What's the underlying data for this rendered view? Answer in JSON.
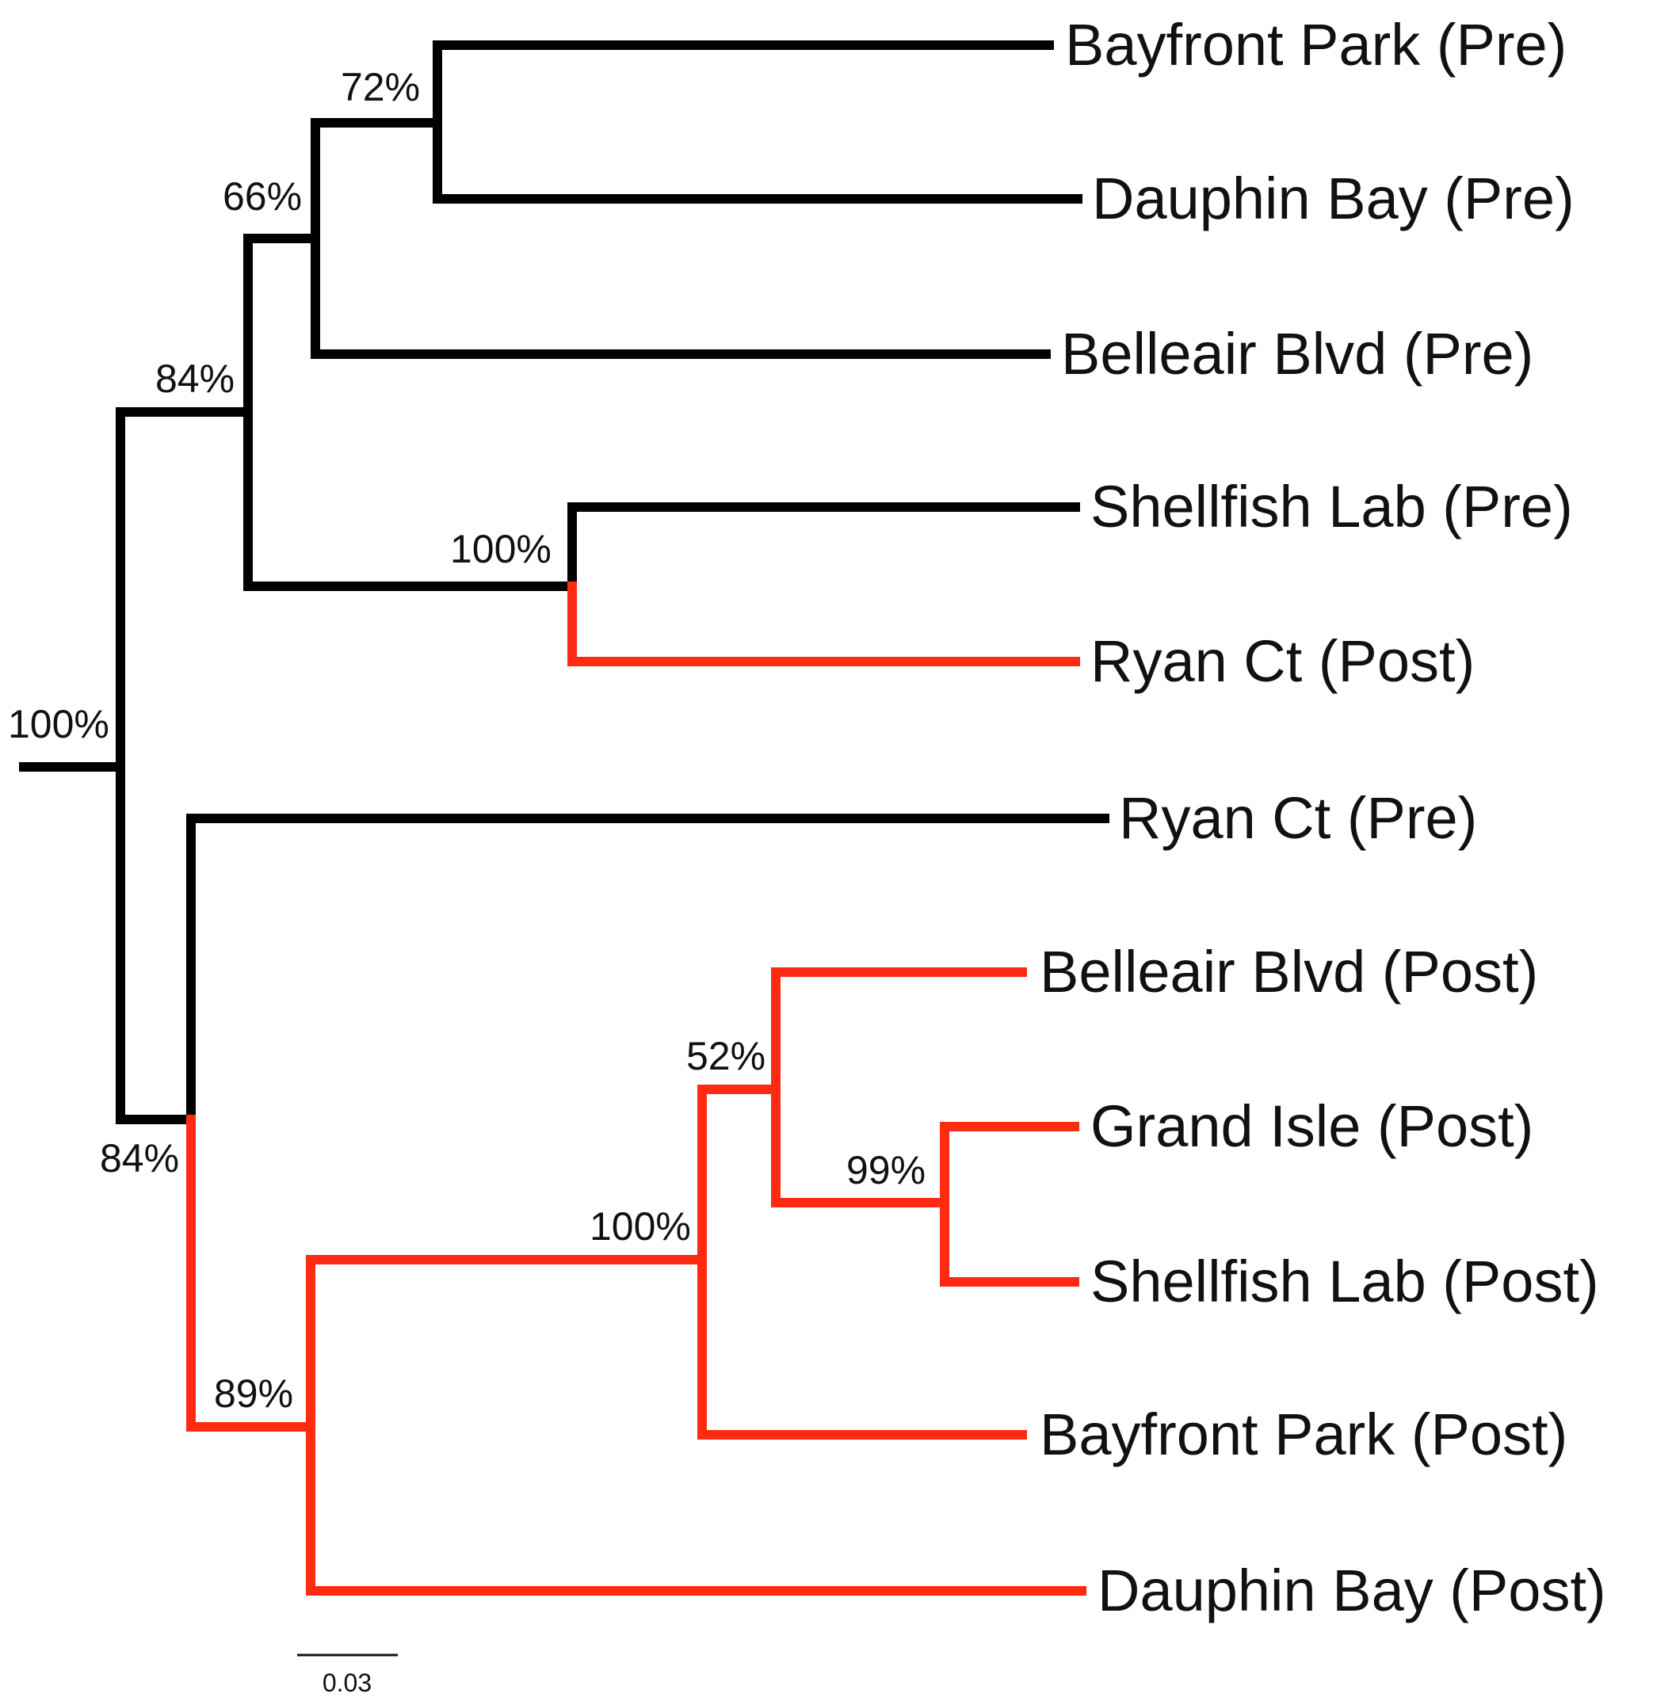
{
  "tree": {
    "colors": {
      "pre": "#000000",
      "post": "#ff2a12"
    },
    "leaves": [
      {
        "id": "l1",
        "label": "Bayfront Park (Pre)",
        "group": "pre"
      },
      {
        "id": "l2",
        "label": "Dauphin Bay (Pre)",
        "group": "pre"
      },
      {
        "id": "l3",
        "label": "Belleair Blvd (Pre)",
        "group": "pre"
      },
      {
        "id": "l4",
        "label": "Shellfish Lab (Pre)",
        "group": "pre"
      },
      {
        "id": "l5",
        "label": "Ryan Ct (Post)",
        "group": "post"
      },
      {
        "id": "l6",
        "label": "Ryan Ct (Pre)",
        "group": "pre"
      },
      {
        "id": "l7",
        "label": "Belleair Blvd (Post)",
        "group": "post"
      },
      {
        "id": "l8",
        "label": "Grand Isle (Post)",
        "group": "post"
      },
      {
        "id": "l9",
        "label": "Shellfish Lab (Post)",
        "group": "post"
      },
      {
        "id": "l10",
        "label": "Bayfront Park (Post)",
        "group": "post"
      },
      {
        "id": "l11",
        "label": "Dauphin Bay (Post)",
        "group": "post"
      }
    ],
    "support_values": [
      {
        "node": "root",
        "value": "100%"
      },
      {
        "node": "pre-clade",
        "value": "84%"
      },
      {
        "node": "pre-subclade",
        "value": "66%"
      },
      {
        "node": "bayfront-dauphin-pre",
        "value": "72%"
      },
      {
        "node": "shellfish-ryan",
        "value": "100%"
      },
      {
        "node": "ryan-post-clade",
        "value": "84%"
      },
      {
        "node": "post-clade",
        "value": "89%"
      },
      {
        "node": "post-subclade",
        "value": "100%"
      },
      {
        "node": "belleair-grand-shellfish-post",
        "value": "52%"
      },
      {
        "node": "grand-shellfish-post",
        "value": "99%"
      }
    ],
    "scale_bar": {
      "label": "0.03"
    }
  }
}
